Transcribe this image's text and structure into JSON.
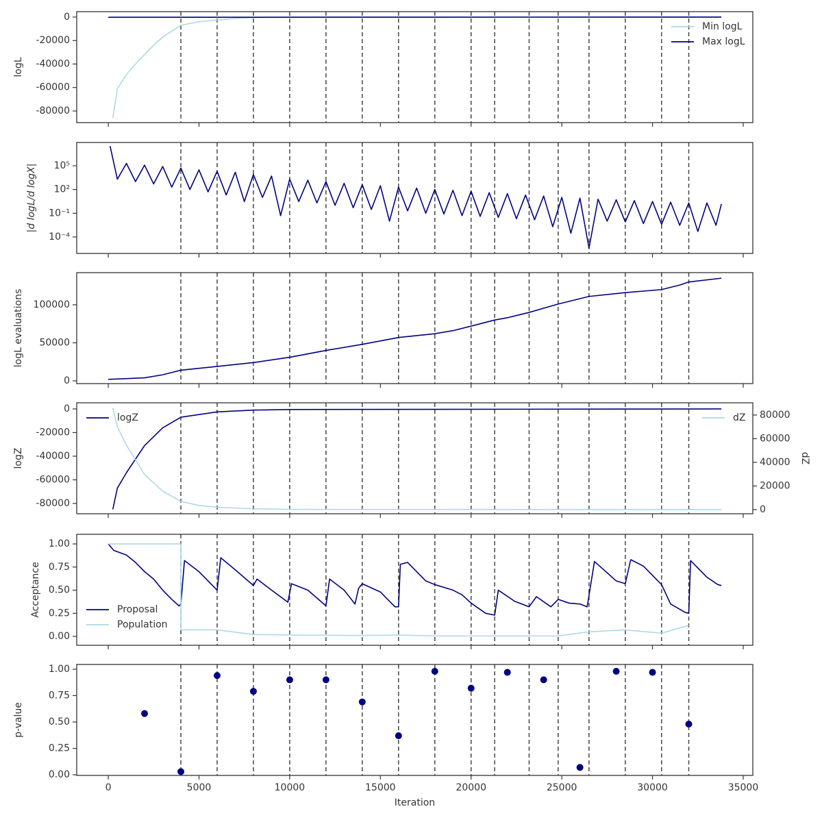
{
  "chart_data": [
    {
      "type": "line",
      "ylabel": "logL",
      "ylim": [
        -89900,
        4600
      ],
      "yticks": [
        -80000,
        -60000,
        -40000,
        -20000,
        0
      ],
      "legend": "upper right",
      "series": [
        {
          "name": "Min logL",
          "color": "#add8e6",
          "x": [
            250,
            500,
            1000,
            1500,
            2000,
            2500,
            3000,
            4000,
            5000,
            6000,
            7000,
            8000,
            10000,
            33800
          ],
          "values": [
            -86000,
            -61000,
            -49000,
            -40000,
            -32000,
            -24000,
            -17000,
            -7000,
            -4000,
            -2500,
            -1200,
            -500,
            -100,
            -10
          ]
        },
        {
          "name": "Max logL",
          "color": "#000080",
          "x": [
            0,
            33800
          ],
          "values": [
            -200,
            -5
          ]
        }
      ]
    },
    {
      "type": "line",
      "ylabel": "|d logL/d logX|",
      "log_scale": true,
      "ylim": [
        8.3e-07,
        87000000.0
      ],
      "yticks": [
        {
          "value": 0.0001,
          "label": "10⁻⁴"
        },
        {
          "value": 0.1,
          "label": "10⁻¹"
        },
        {
          "value": 100,
          "label": "10²"
        },
        {
          "value": 100000,
          "label": "10⁵"
        }
      ],
      "series": [
        {
          "color": "#000080",
          "x": [
            100,
            500,
            1000,
            1500,
            2000,
            2500,
            3000,
            3500,
            4000,
            4500,
            5000,
            5500,
            6000,
            6500,
            7000,
            7500,
            8000,
            8500,
            9000,
            9500,
            10000,
            10500,
            11000,
            11500,
            12000,
            12500,
            13000,
            13500,
            14000,
            14500,
            15000,
            15500,
            16000,
            16500,
            17000,
            17500,
            18000,
            18500,
            19000,
            19500,
            20000,
            20500,
            21000,
            21500,
            22000,
            22500,
            23000,
            23500,
            24000,
            24500,
            25000,
            25500,
            26000,
            26500,
            27000,
            27500,
            28000,
            28500,
            29000,
            29500,
            30000,
            30500,
            31000,
            31500,
            32000,
            32500,
            33000,
            33500,
            33800
          ],
          "values": [
            30000000,
            2000,
            200000,
            1000,
            120000,
            500,
            80000,
            200,
            50000,
            100,
            30000,
            50,
            20000,
            20,
            15000,
            3,
            8000,
            10,
            5000,
            0.05,
            2000,
            3,
            1500,
            2,
            1000,
            1,
            600,
            0.5,
            400,
            0.3,
            300,
            0.01,
            200,
            0.2,
            150,
            0.1,
            100,
            0.08,
            80,
            0.05,
            60,
            0.04,
            40,
            0.03,
            30,
            0.02,
            20,
            0.015,
            15,
            0.002,
            10,
            0.0003,
            8,
            4e-06,
            6,
            0.01,
            5,
            0.008,
            4,
            0.005,
            3,
            0.004,
            2.5,
            0.003,
            2,
            0.0005,
            2,
            0.003,
            1.5
          ]
        }
      ]
    },
    {
      "type": "line",
      "ylabel": "logL evaluations",
      "ylim": [
        -3600,
        142300
      ],
      "yticks": [
        0,
        50000,
        100000
      ],
      "series": [
        {
          "color": "#000080",
          "x": [
            0,
            2000,
            3000,
            4000,
            6000,
            8000,
            10000,
            12000,
            14000,
            16000,
            18000,
            19000,
            20000,
            21300,
            22000,
            23200,
            24800,
            26500,
            28500,
            30500,
            31500,
            32000,
            33800
          ],
          "values": [
            2000,
            4000,
            8000,
            14000,
            19000,
            24000,
            31000,
            40000,
            48000,
            57000,
            62000,
            66000,
            72000,
            80000,
            83000,
            90000,
            101000,
            111000,
            116000,
            120000,
            126000,
            130000,
            135000
          ]
        }
      ]
    },
    {
      "type": "line",
      "ylabel": "logZ",
      "y2label": "dZ",
      "ylim": [
        -88700,
        5200
      ],
      "yticks": [
        -80000,
        -60000,
        -40000,
        -20000,
        0
      ],
      "y2lim": [
        -3500,
        90400
      ],
      "y2ticks": [
        0,
        20000,
        40000,
        60000,
        80000
      ],
      "legend": "upper left",
      "legend2": "upper right",
      "series": [
        {
          "name": "logZ",
          "color": "#000080",
          "x": [
            250,
            500,
            1000,
            2000,
            3000,
            4000,
            6000,
            8000,
            10000,
            33800
          ],
          "values": [
            -85000,
            -67000,
            -54000,
            -31000,
            -16000,
            -7000,
            -2500,
            -1000,
            -500,
            0
          ]
        },
        {
          "name": "dZ",
          "color": "#add8e6",
          "axis": "y2",
          "x": [
            250,
            500,
            1000,
            2000,
            3000,
            4000,
            5000,
            6000,
            8000,
            10000,
            33800
          ],
          "values": [
            86000,
            70000,
            54500,
            29600,
            15600,
            7000,
            3500,
            2000,
            700,
            200,
            0
          ]
        }
      ]
    },
    {
      "type": "line",
      "ylabel": "Acceptance",
      "ylim": [
        -0.096,
        1.104
      ],
      "yticks": [
        {
          "value": 0,
          "label": "0.00"
        },
        {
          "value": 0.25,
          "label": "0.25"
        },
        {
          "value": 0.5,
          "label": "0.50"
        },
        {
          "value": 0.75,
          "label": "0.75"
        },
        {
          "value": 1,
          "label": "1.00"
        }
      ],
      "legend": "lower left",
      "series": [
        {
          "name": "Proposal",
          "color": "#000080",
          "x": [
            0,
            300,
            1000,
            1500,
            2000,
            2500,
            3000,
            3500,
            3900,
            4000,
            4200,
            5000,
            6000,
            6200,
            7000,
            8000,
            8200,
            9000,
            9900,
            10100,
            11000,
            12000,
            12200,
            13000,
            13600,
            13800,
            14000,
            15000,
            15800,
            16000,
            16100,
            16500,
            17500,
            18000,
            19000,
            19500,
            20000,
            20800,
            21300,
            21500,
            22400,
            23200,
            23600,
            24400,
            24800,
            25400,
            26000,
            26400,
            26800,
            28000,
            28500,
            28800,
            29500,
            30500,
            31000,
            31800,
            32000,
            32100,
            33000,
            33600,
            33800
          ],
          "values": [
            1.0,
            0.93,
            0.88,
            0.8,
            0.7,
            0.62,
            0.5,
            0.4,
            0.33,
            0.35,
            0.82,
            0.7,
            0.5,
            0.85,
            0.72,
            0.55,
            0.62,
            0.5,
            0.37,
            0.57,
            0.5,
            0.33,
            0.62,
            0.5,
            0.35,
            0.52,
            0.57,
            0.48,
            0.32,
            0.32,
            0.78,
            0.8,
            0.6,
            0.56,
            0.5,
            0.45,
            0.36,
            0.25,
            0.23,
            0.5,
            0.38,
            0.32,
            0.43,
            0.32,
            0.4,
            0.36,
            0.35,
            0.32,
            0.81,
            0.6,
            0.57,
            0.83,
            0.76,
            0.56,
            0.35,
            0.26,
            0.25,
            0.82,
            0.64,
            0.56,
            0.55
          ]
        },
        {
          "name": "Population",
          "color": "#add8e6",
          "x": [
            0,
            4000,
            4000,
            6000,
            8000,
            10000,
            14000,
            16000,
            18000,
            24800,
            26500,
            28500,
            30500,
            32000
          ],
          "values": [
            1.0,
            1.0,
            0.07,
            0.07,
            0.02,
            0.015,
            0.01,
            0.015,
            0.005,
            0.005,
            0.05,
            0.07,
            0.035,
            0.12
          ]
        }
      ]
    },
    {
      "type": "scatter",
      "ylabel": "p-value",
      "xlabel": "Iteration",
      "ylim": [
        -0.006,
        1.045
      ],
      "yticks": [
        {
          "value": 0,
          "label": "0.00"
        },
        {
          "value": 0.25,
          "label": "0.25"
        },
        {
          "value": 0.5,
          "label": "0.50"
        },
        {
          "value": 0.75,
          "label": "0.75"
        },
        {
          "value": 1,
          "label": "1.00"
        }
      ],
      "xlim": [
        -1740,
        35530
      ],
      "xticks": [
        0,
        5000,
        10000,
        15000,
        20000,
        25000,
        30000,
        35000
      ],
      "vlines": [
        4000,
        6000,
        8000,
        10000,
        12000,
        14000,
        16000,
        18000,
        20000,
        21300,
        23200,
        24800,
        26500,
        28500,
        30500,
        32000
      ],
      "series": [
        {
          "color": "#000080",
          "x": [
            2000,
            4000,
            6000,
            8000,
            10000,
            12000,
            14000,
            16000,
            18000,
            20000,
            22000,
            24000,
            26000,
            28000,
            30000,
            32000
          ],
          "values": [
            0.58,
            0.03,
            0.94,
            0.79,
            0.9,
            0.9,
            0.69,
            0.37,
            0.98,
            0.82,
            0.97,
            0.9,
            0.07,
            0.98,
            0.97,
            0.48
          ]
        }
      ]
    }
  ]
}
